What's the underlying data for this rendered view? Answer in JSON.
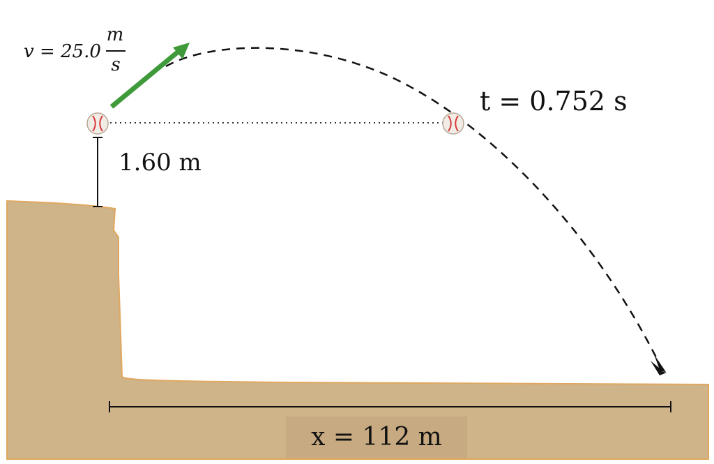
{
  "colors": {
    "ground": "#cfb389",
    "ground_edge": "#e0a860",
    "arrow": "#3f9a3a",
    "ball": "#f1ece6",
    "ball_stitch": "#d83a3a",
    "line": "#111111"
  },
  "labels": {
    "velocity_prefix": "v = 25.0",
    "velocity_unit_num": "m",
    "velocity_unit_den": "s",
    "time": "t = 0.752 s",
    "height": "1.60 m",
    "distance": "x = 112 m"
  }
}
